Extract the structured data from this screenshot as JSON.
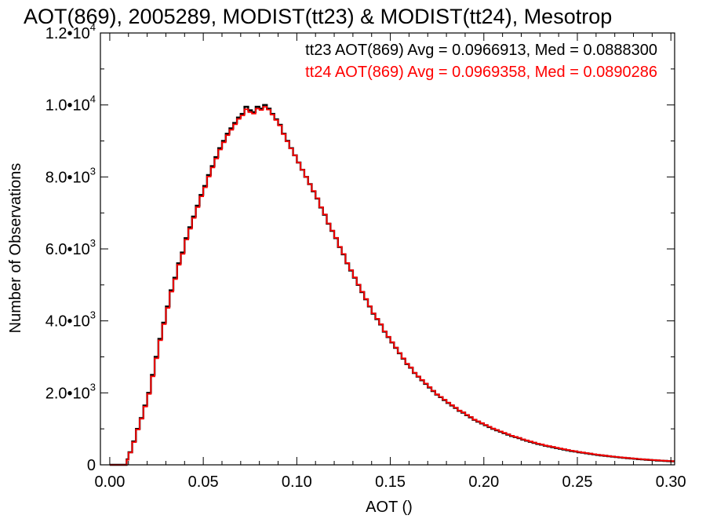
{
  "chart_data": {
    "type": "line",
    "title": "AOT(869), 2005289, MODIST(tt23) & MODIST(tt24), Mesotrop",
    "xlabel": "AOT ()",
    "ylabel": "Number of Observations",
    "xlim": [
      -0.005,
      0.302
    ],
    "ylim": [
      0,
      12000
    ],
    "x_ticks": [
      {
        "value": 0.0,
        "label": "0.00"
      },
      {
        "value": 0.05,
        "label": "0.05"
      },
      {
        "value": 0.1,
        "label": "0.10"
      },
      {
        "value": 0.15,
        "label": "0.15"
      },
      {
        "value": 0.2,
        "label": "0.20"
      },
      {
        "value": 0.25,
        "label": "0.25"
      },
      {
        "value": 0.3,
        "label": "0.30"
      }
    ],
    "y_ticks": [
      {
        "value": 0,
        "mantissa": "0",
        "exponent": ""
      },
      {
        "value": 2000,
        "mantissa": "2.0•10",
        "exponent": "3"
      },
      {
        "value": 4000,
        "mantissa": "4.0•10",
        "exponent": "3"
      },
      {
        "value": 6000,
        "mantissa": "6.0•10",
        "exponent": "3"
      },
      {
        "value": 8000,
        "mantissa": "8.0•10",
        "exponent": "3"
      },
      {
        "value": 10000,
        "mantissa": "1.0•10",
        "exponent": "4"
      },
      {
        "value": 12000,
        "mantissa": "1.2•10",
        "exponent": "4"
      }
    ],
    "legend_placement": "top-right",
    "step": "histogram",
    "series": [
      {
        "name": "tt23",
        "legend_text": "tt23 AOT(869) Avg = 0.0966913, Med = 0.0888300",
        "color": "#000000",
        "points": [
          [
            0.0,
            0
          ],
          [
            0.005,
            0
          ],
          [
            0.009,
            150
          ],
          [
            0.01,
            350
          ],
          [
            0.012,
            650
          ],
          [
            0.014,
            1000
          ],
          [
            0.016,
            1300
          ],
          [
            0.018,
            1650
          ],
          [
            0.02,
            2000
          ],
          [
            0.022,
            2500
          ],
          [
            0.024,
            3000
          ],
          [
            0.026,
            3500
          ],
          [
            0.028,
            3950
          ],
          [
            0.03,
            4400
          ],
          [
            0.032,
            4850
          ],
          [
            0.034,
            5200
          ],
          [
            0.036,
            5600
          ],
          [
            0.038,
            5900
          ],
          [
            0.04,
            6300
          ],
          [
            0.042,
            6600
          ],
          [
            0.044,
            6900
          ],
          [
            0.046,
            7200
          ],
          [
            0.048,
            7500
          ],
          [
            0.05,
            7750
          ],
          [
            0.052,
            8050
          ],
          [
            0.054,
            8300
          ],
          [
            0.056,
            8550
          ],
          [
            0.058,
            8800
          ],
          [
            0.06,
            9000
          ],
          [
            0.062,
            9200
          ],
          [
            0.064,
            9350
          ],
          [
            0.066,
            9500
          ],
          [
            0.068,
            9650
          ],
          [
            0.07,
            9750
          ],
          [
            0.072,
            9950
          ],
          [
            0.074,
            9850
          ],
          [
            0.076,
            9800
          ],
          [
            0.078,
            9950
          ],
          [
            0.08,
            9900
          ],
          [
            0.082,
            10000
          ],
          [
            0.084,
            9900
          ],
          [
            0.086,
            9750
          ],
          [
            0.088,
            9600
          ],
          [
            0.09,
            9450
          ],
          [
            0.092,
            9200
          ],
          [
            0.094,
            9000
          ],
          [
            0.096,
            8800
          ],
          [
            0.098,
            8600
          ],
          [
            0.1,
            8400
          ],
          [
            0.102,
            8200
          ],
          [
            0.104,
            8000
          ],
          [
            0.106,
            7800
          ],
          [
            0.108,
            7600
          ],
          [
            0.11,
            7400
          ],
          [
            0.112,
            7150
          ],
          [
            0.114,
            6950
          ],
          [
            0.116,
            6700
          ],
          [
            0.118,
            6500
          ],
          [
            0.12,
            6300
          ],
          [
            0.122,
            6050
          ],
          [
            0.124,
            5850
          ],
          [
            0.126,
            5600
          ],
          [
            0.128,
            5400
          ],
          [
            0.13,
            5200
          ],
          [
            0.132,
            5000
          ],
          [
            0.134,
            4800
          ],
          [
            0.136,
            4600
          ],
          [
            0.138,
            4400
          ],
          [
            0.14,
            4200
          ],
          [
            0.142,
            4050
          ],
          [
            0.144,
            3900
          ],
          [
            0.146,
            3700
          ],
          [
            0.148,
            3550
          ],
          [
            0.15,
            3400
          ],
          [
            0.152,
            3250
          ],
          [
            0.154,
            3100
          ],
          [
            0.156,
            2950
          ],
          [
            0.158,
            2800
          ],
          [
            0.16,
            2700
          ],
          [
            0.162,
            2550
          ],
          [
            0.164,
            2450
          ],
          [
            0.166,
            2350
          ],
          [
            0.168,
            2250
          ],
          [
            0.17,
            2150
          ],
          [
            0.172,
            2050
          ],
          [
            0.174,
            1950
          ],
          [
            0.176,
            1880
          ],
          [
            0.178,
            1800
          ],
          [
            0.18,
            1720
          ],
          [
            0.182,
            1650
          ],
          [
            0.184,
            1580
          ],
          [
            0.186,
            1500
          ],
          [
            0.188,
            1450
          ],
          [
            0.19,
            1380
          ],
          [
            0.192,
            1320
          ],
          [
            0.194,
            1250
          ],
          [
            0.196,
            1200
          ],
          [
            0.198,
            1150
          ],
          [
            0.2,
            1100
          ],
          [
            0.202,
            1050
          ],
          [
            0.204,
            1000
          ],
          [
            0.206,
            960
          ],
          [
            0.208,
            920
          ],
          [
            0.21,
            880
          ],
          [
            0.212,
            840
          ],
          [
            0.214,
            800
          ],
          [
            0.216,
            770
          ],
          [
            0.218,
            740
          ],
          [
            0.22,
            700
          ],
          [
            0.222,
            670
          ],
          [
            0.224,
            640
          ],
          [
            0.226,
            610
          ],
          [
            0.228,
            580
          ],
          [
            0.23,
            560
          ],
          [
            0.232,
            530
          ],
          [
            0.234,
            510
          ],
          [
            0.236,
            490
          ],
          [
            0.238,
            465
          ],
          [
            0.24,
            445
          ],
          [
            0.242,
            425
          ],
          [
            0.244,
            405
          ],
          [
            0.246,
            385
          ],
          [
            0.248,
            370
          ],
          [
            0.25,
            350
          ],
          [
            0.252,
            335
          ],
          [
            0.254,
            320
          ],
          [
            0.256,
            305
          ],
          [
            0.258,
            290
          ],
          [
            0.26,
            275
          ],
          [
            0.262,
            262
          ],
          [
            0.264,
            250
          ],
          [
            0.266,
            238
          ],
          [
            0.268,
            226
          ],
          [
            0.27,
            215
          ],
          [
            0.272,
            205
          ],
          [
            0.274,
            195
          ],
          [
            0.276,
            185
          ],
          [
            0.278,
            176
          ],
          [
            0.28,
            167
          ],
          [
            0.282,
            158
          ],
          [
            0.284,
            150
          ],
          [
            0.286,
            142
          ],
          [
            0.288,
            135
          ],
          [
            0.29,
            128
          ],
          [
            0.292,
            121
          ],
          [
            0.294,
            115
          ],
          [
            0.296,
            109
          ],
          [
            0.298,
            103
          ],
          [
            0.3,
            98
          ]
        ]
      },
      {
        "name": "tt24",
        "legend_text": "tt24 AOT(869) Avg = 0.0969358, Med = 0.0890286",
        "color": "#ff0000",
        "points": [
          [
            0.0,
            0
          ],
          [
            0.005,
            0
          ],
          [
            0.009,
            140
          ],
          [
            0.01,
            340
          ],
          [
            0.012,
            630
          ],
          [
            0.014,
            980
          ],
          [
            0.016,
            1280
          ],
          [
            0.018,
            1620
          ],
          [
            0.02,
            1970
          ],
          [
            0.022,
            2460
          ],
          [
            0.024,
            2960
          ],
          [
            0.026,
            3460
          ],
          [
            0.028,
            3910
          ],
          [
            0.03,
            4360
          ],
          [
            0.032,
            4810
          ],
          [
            0.034,
            5160
          ],
          [
            0.036,
            5560
          ],
          [
            0.038,
            5860
          ],
          [
            0.04,
            6260
          ],
          [
            0.042,
            6560
          ],
          [
            0.044,
            6860
          ],
          [
            0.046,
            7160
          ],
          [
            0.048,
            7460
          ],
          [
            0.05,
            7710
          ],
          [
            0.052,
            8010
          ],
          [
            0.054,
            8260
          ],
          [
            0.056,
            8510
          ],
          [
            0.058,
            8760
          ],
          [
            0.06,
            8960
          ],
          [
            0.062,
            9160
          ],
          [
            0.064,
            9310
          ],
          [
            0.066,
            9460
          ],
          [
            0.068,
            9610
          ],
          [
            0.07,
            9710
          ],
          [
            0.072,
            9880
          ],
          [
            0.074,
            9800
          ],
          [
            0.076,
            9760
          ],
          [
            0.078,
            9900
          ],
          [
            0.08,
            9860
          ],
          [
            0.082,
            9950
          ],
          [
            0.084,
            9870
          ],
          [
            0.086,
            9730
          ],
          [
            0.088,
            9580
          ],
          [
            0.09,
            9430
          ],
          [
            0.092,
            9190
          ],
          [
            0.094,
            8990
          ],
          [
            0.096,
            8790
          ],
          [
            0.098,
            8600
          ],
          [
            0.1,
            8400
          ],
          [
            0.102,
            8200
          ],
          [
            0.104,
            8000
          ],
          [
            0.106,
            7800
          ],
          [
            0.108,
            7610
          ],
          [
            0.11,
            7410
          ],
          [
            0.112,
            7160
          ],
          [
            0.114,
            6960
          ],
          [
            0.116,
            6710
          ],
          [
            0.118,
            6510
          ],
          [
            0.12,
            6310
          ],
          [
            0.122,
            6060
          ],
          [
            0.124,
            5860
          ],
          [
            0.126,
            5610
          ],
          [
            0.128,
            5410
          ],
          [
            0.13,
            5210
          ],
          [
            0.132,
            5010
          ],
          [
            0.134,
            4810
          ],
          [
            0.136,
            4610
          ],
          [
            0.138,
            4410
          ],
          [
            0.14,
            4210
          ],
          [
            0.142,
            4060
          ],
          [
            0.144,
            3910
          ],
          [
            0.146,
            3710
          ],
          [
            0.148,
            3560
          ],
          [
            0.15,
            3410
          ],
          [
            0.152,
            3260
          ],
          [
            0.154,
            3110
          ],
          [
            0.156,
            2960
          ],
          [
            0.158,
            2810
          ],
          [
            0.16,
            2710
          ],
          [
            0.162,
            2560
          ],
          [
            0.164,
            2460
          ],
          [
            0.166,
            2360
          ],
          [
            0.168,
            2260
          ],
          [
            0.17,
            2160
          ],
          [
            0.172,
            2060
          ],
          [
            0.174,
            1960
          ],
          [
            0.176,
            1890
          ],
          [
            0.178,
            1810
          ],
          [
            0.18,
            1730
          ],
          [
            0.182,
            1660
          ],
          [
            0.184,
            1590
          ],
          [
            0.186,
            1510
          ],
          [
            0.188,
            1460
          ],
          [
            0.19,
            1390
          ],
          [
            0.192,
            1330
          ],
          [
            0.194,
            1260
          ],
          [
            0.196,
            1210
          ],
          [
            0.198,
            1160
          ],
          [
            0.2,
            1110
          ],
          [
            0.202,
            1060
          ],
          [
            0.204,
            1010
          ],
          [
            0.206,
            970
          ],
          [
            0.208,
            930
          ],
          [
            0.21,
            890
          ],
          [
            0.212,
            850
          ],
          [
            0.214,
            810
          ],
          [
            0.216,
            780
          ],
          [
            0.218,
            750
          ],
          [
            0.22,
            710
          ],
          [
            0.222,
            680
          ],
          [
            0.224,
            650
          ],
          [
            0.226,
            620
          ],
          [
            0.228,
            590
          ],
          [
            0.23,
            570
          ],
          [
            0.232,
            540
          ],
          [
            0.234,
            520
          ],
          [
            0.236,
            500
          ],
          [
            0.238,
            475
          ],
          [
            0.24,
            455
          ],
          [
            0.242,
            435
          ],
          [
            0.244,
            415
          ],
          [
            0.246,
            395
          ],
          [
            0.248,
            378
          ],
          [
            0.25,
            358
          ],
          [
            0.252,
            342
          ],
          [
            0.254,
            327
          ],
          [
            0.256,
            312
          ],
          [
            0.258,
            297
          ],
          [
            0.26,
            282
          ],
          [
            0.262,
            268
          ],
          [
            0.264,
            256
          ],
          [
            0.266,
            244
          ],
          [
            0.268,
            232
          ],
          [
            0.27,
            220
          ],
          [
            0.272,
            210
          ],
          [
            0.274,
            200
          ],
          [
            0.276,
            190
          ],
          [
            0.278,
            181
          ],
          [
            0.28,
            172
          ],
          [
            0.282,
            163
          ],
          [
            0.284,
            155
          ],
          [
            0.286,
            147
          ],
          [
            0.288,
            140
          ],
          [
            0.29,
            133
          ],
          [
            0.292,
            126
          ],
          [
            0.294,
            120
          ],
          [
            0.296,
            114
          ],
          [
            0.298,
            108
          ],
          [
            0.3,
            103
          ]
        ]
      }
    ]
  }
}
